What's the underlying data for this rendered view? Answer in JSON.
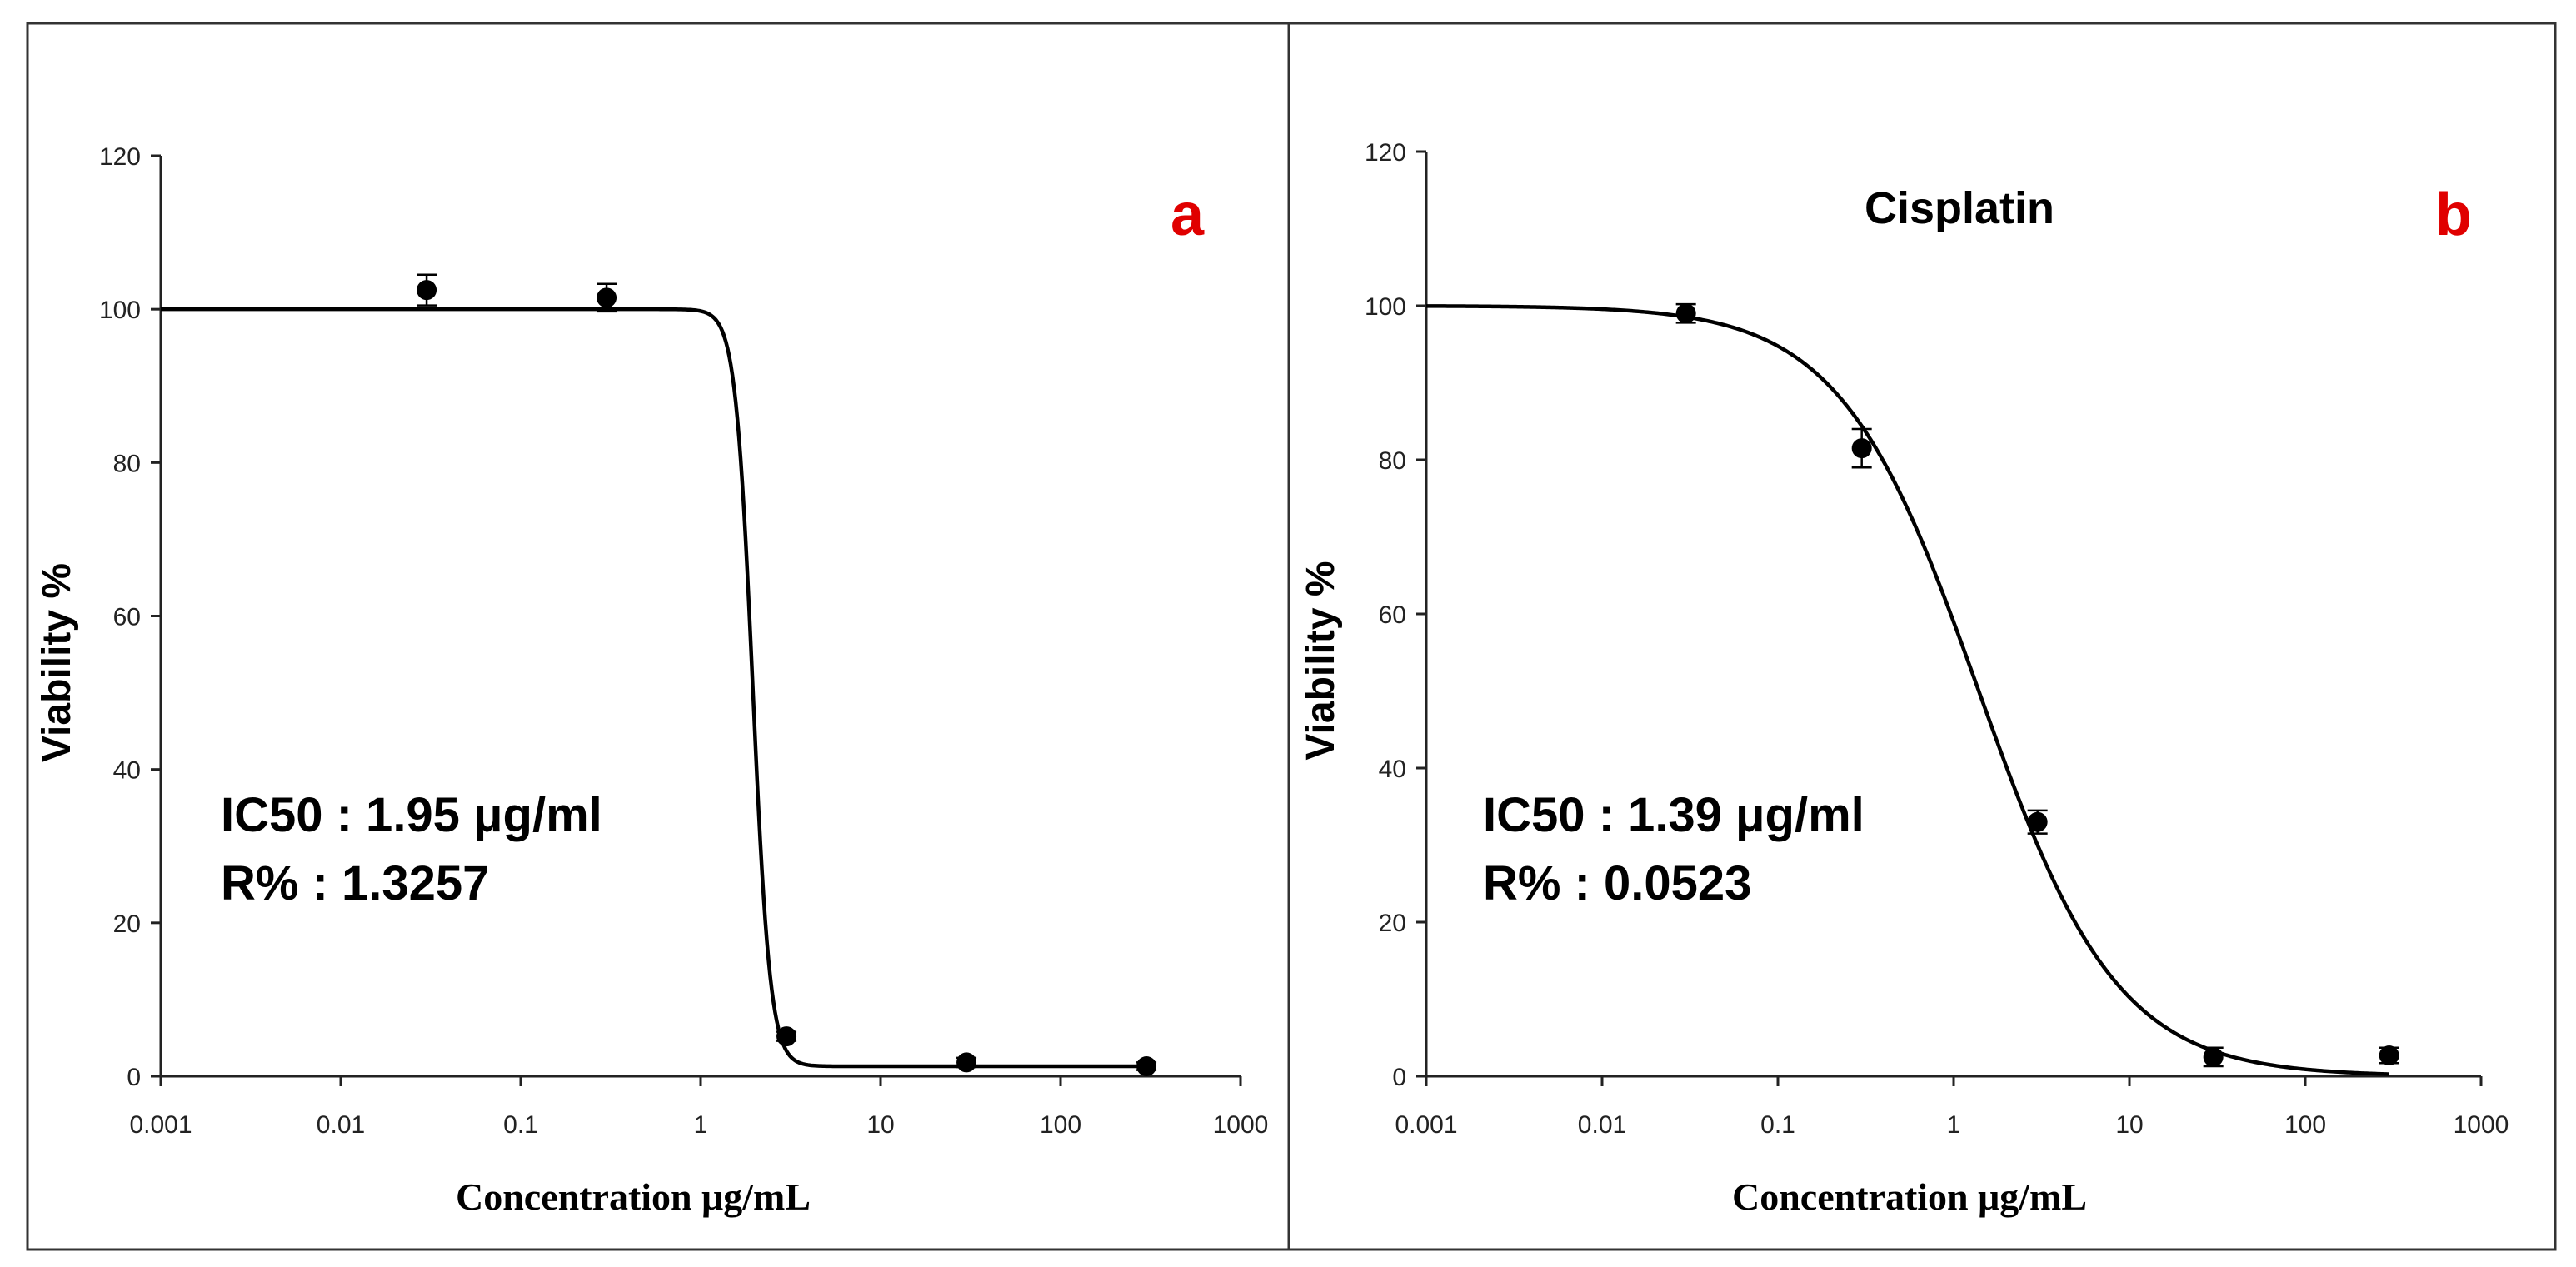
{
  "chart_data": [
    {
      "type": "scatter",
      "panel_label": "a",
      "title": "",
      "xlabel": "Concentration μg/mL",
      "ylabel": "Viability %",
      "xscale": "log",
      "xlim": [
        0.001,
        1000
      ],
      "ylim": [
        0,
        120
      ],
      "xticks": [
        "0.001",
        "0.01",
        "0.1",
        "1",
        "10",
        "100",
        "1000"
      ],
      "yticks": [
        "0",
        "20",
        "40",
        "60",
        "80",
        "100",
        "120"
      ],
      "points": [
        {
          "x": 0.03,
          "y": 102.5,
          "err": 2.0
        },
        {
          "x": 0.3,
          "y": 101.5,
          "err": 1.8
        },
        {
          "x": 3,
          "y": 5.2,
          "err": 0.6
        },
        {
          "x": 30,
          "y": 1.8,
          "err": 0.6
        },
        {
          "x": 300,
          "y": 1.3,
          "err": 0.5
        }
      ],
      "fit": {
        "model": "4PL",
        "top": 100,
        "bottom": 1.3,
        "ec50": 1.95,
        "hill": 9
      },
      "annotations": {
        "ic50": "IC50 : 1.95 μg/ml",
        "r": "R% : 1.3257"
      },
      "colors": {
        "label": "#e00000",
        "line": "#000000"
      }
    },
    {
      "type": "scatter",
      "panel_label": "b",
      "title": "Cisplatin",
      "xlabel": "Concentration μg/mL",
      "ylabel": "Viability %",
      "xscale": "log",
      "xlim": [
        0.001,
        1000
      ],
      "ylim": [
        0,
        120
      ],
      "xticks": [
        "0.001",
        "0.01",
        "0.1",
        "1",
        "10",
        "100",
        "1000"
      ],
      "yticks": [
        "0",
        "20",
        "40",
        "60",
        "80",
        "100",
        "120"
      ],
      "points": [
        {
          "x": 0.03,
          "y": 99,
          "err": 1.2
        },
        {
          "x": 0.3,
          "y": 81.5,
          "err": 2.5
        },
        {
          "x": 3,
          "y": 33,
          "err": 1.5
        },
        {
          "x": 30,
          "y": 2.5,
          "err": 1.2
        },
        {
          "x": 300,
          "y": 2.7,
          "err": 1.0
        }
      ],
      "fit": {
        "model": "4PL",
        "top": 100,
        "bottom": 0,
        "ec50": 1.39,
        "hill": 1.1
      },
      "annotations": {
        "ic50": "IC50 : 1.39 μg/ml",
        "r": "R% : 0.0523"
      },
      "colors": {
        "label": "#e00000",
        "line": "#000000"
      }
    }
  ]
}
